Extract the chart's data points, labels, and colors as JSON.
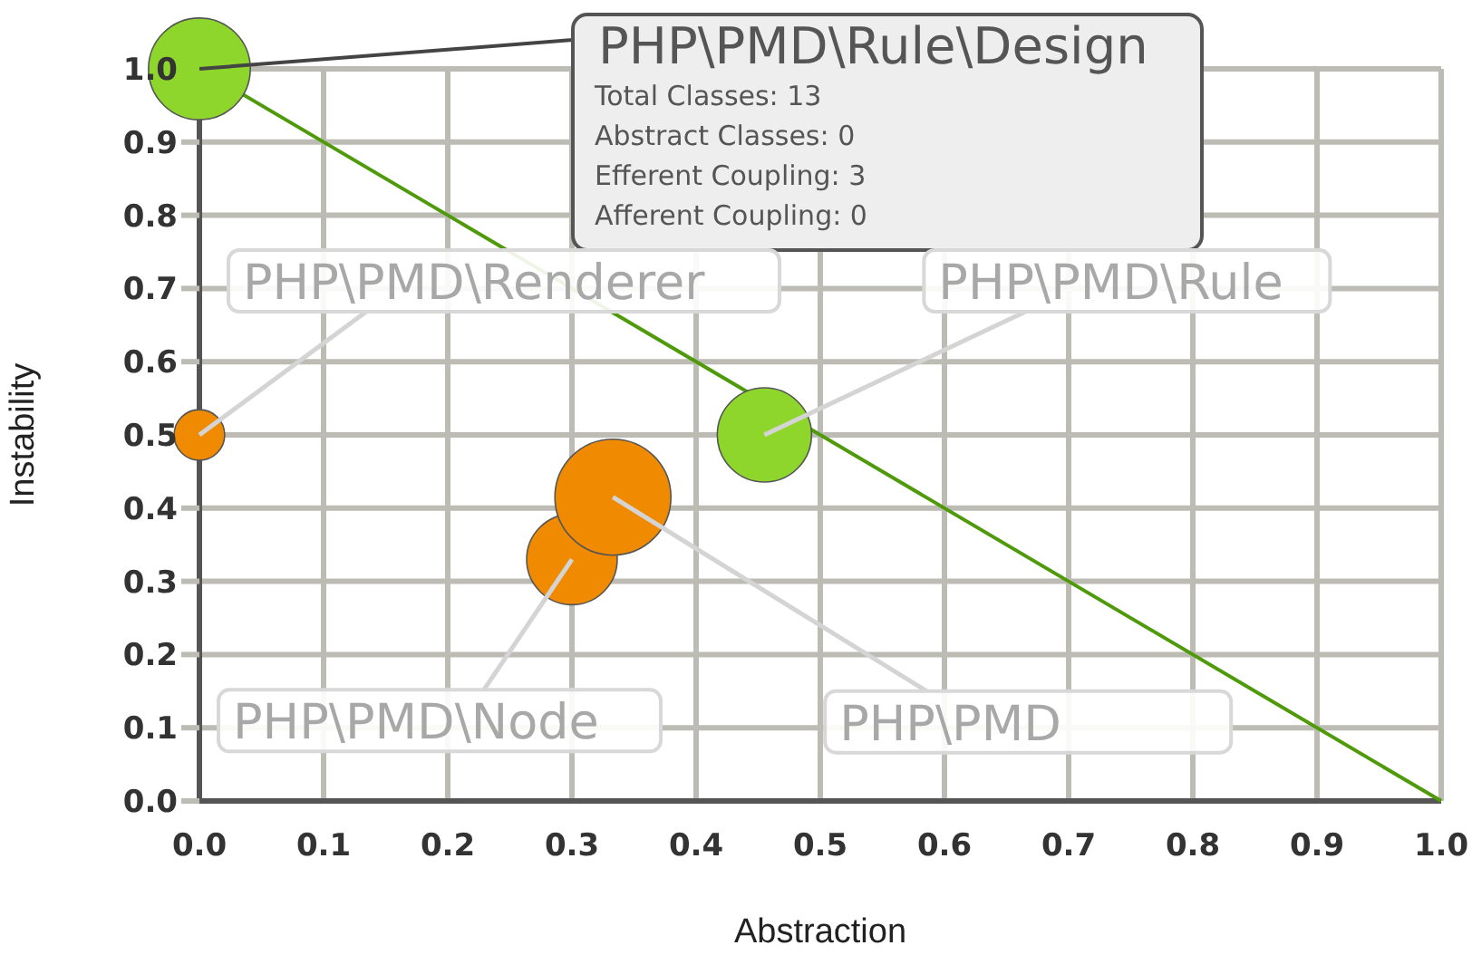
{
  "chart_data": {
    "type": "bubble",
    "xlabel": "Abstraction",
    "ylabel": "Instability",
    "x": [
      0,
      0,
      0.3,
      0.333,
      0.455
    ],
    "series": [
      {
        "values": [
          1,
          0.5,
          0.33,
          0.415,
          0.5
        ],
        "sizes": [
          0.77,
          0.19,
          0.61,
          1,
          0.66
        ],
        "colors": [
          "#8ed62c",
          "#f08a00",
          "#f08a00",
          "#f08a00",
          "#8ed62c"
        ]
      },
      {
        "type": "line",
        "x": [
          0,
          1
        ],
        "values": [
          1,
          0
        ],
        "color": "#4f9a0a"
      }
    ],
    "xlim": [
      0,
      1
    ],
    "ylim": [
      0,
      1
    ],
    "xticks": [
      {
        "value": 0,
        "label": "0.0"
      },
      0.1,
      0.2,
      0.3,
      0.4,
      0.5,
      0.6,
      0.7,
      0.8,
      0.9,
      {
        "value": 1,
        "label": "1.0"
      }
    ],
    "yticks": [
      {
        "value": 0,
        "label": "0.0"
      },
      0.1,
      0.2,
      0.3,
      0.4,
      0.5,
      0.6,
      0.7,
      0.8,
      0.9,
      {
        "value": 1,
        "label": "1.0"
      }
    ],
    "grid": true,
    "legend": false,
    "annotations": [
      {
        "text": "PHP\\PMD\\Rule\\Design",
        "x": 0,
        "y": 1
      },
      "Total Classes: 13",
      "Abstract Classes: 0",
      "Efferent Coupling: 3",
      "Afferent Coupling: 0",
      {
        "text": "PHP\\PMD\\Renderer",
        "x": 0,
        "y": 0.5
      },
      {
        "text": "PHP\\PMD\\Rule",
        "x": 0.455,
        "y": 0.5
      },
      {
        "text": "PHP\\PMD\\Node",
        "x": 0.3,
        "y": 0.33
      },
      {
        "text": "PHP\\PMD",
        "x": 0.333,
        "y": 0.415
      }
    ]
  }
}
